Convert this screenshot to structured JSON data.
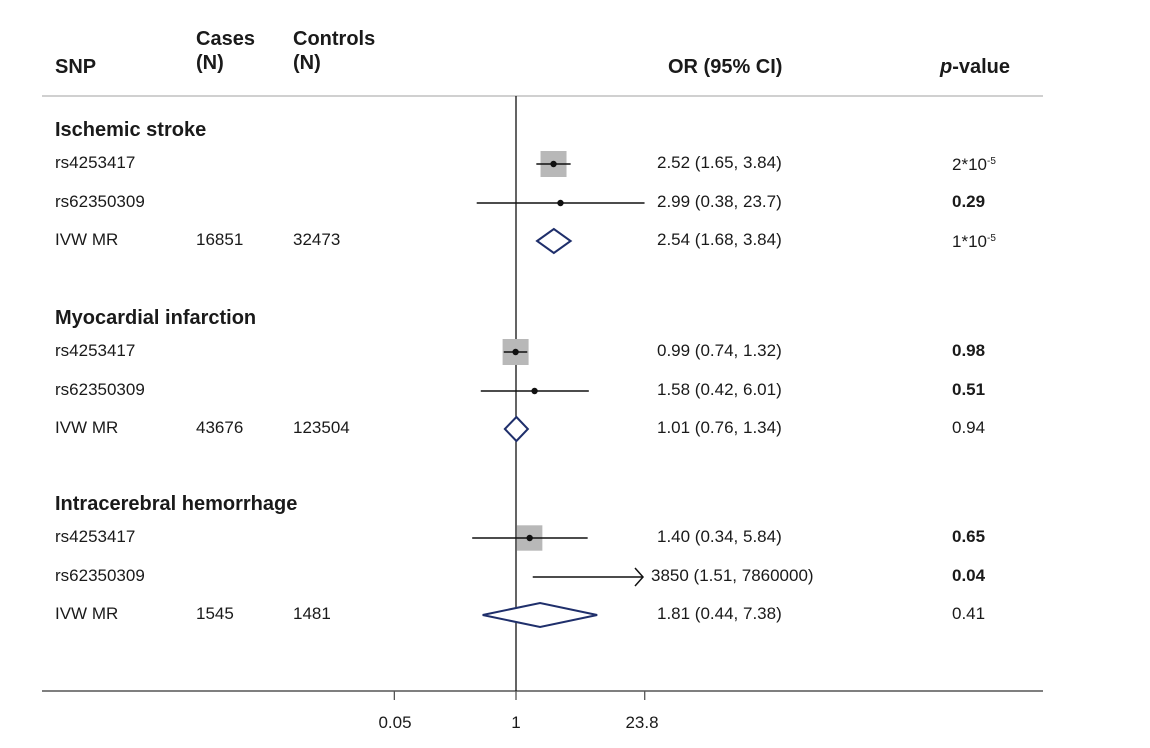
{
  "header": {
    "snp": "SNP",
    "cases": "Cases",
    "cases_unit": "(N)",
    "controls": "Controls",
    "controls_unit": "(N)",
    "or": "OR (95% CI)",
    "pvalue_italic": "p",
    "pvalue_rest": "-value"
  },
  "axis_ticks": [
    "0.05",
    "1",
    "23.8"
  ],
  "chart_data": {
    "type": "forest",
    "x_scale": "log",
    "x_ticks": [
      0.05,
      1,
      23.8
    ],
    "reference_line": 1,
    "groups": [
      {
        "name": "Ischemic stroke",
        "rows": [
          {
            "snp": "rs4253417",
            "cases": "",
            "controls": "",
            "or": 2.52,
            "lo": 1.65,
            "hi": 3.84,
            "or_text": "2.52 (1.65, 3.84)",
            "p_base": "2*10",
            "p_exp": "-5",
            "p_bold": false,
            "marker": "square",
            "weight": 1.0
          },
          {
            "snp": "rs62350309",
            "cases": "",
            "controls": "",
            "or": 2.99,
            "lo": 0.38,
            "hi": 23.7,
            "or_text": "2.99 (0.38, 23.7)",
            "p_base": "0.29",
            "p_exp": "",
            "p_bold": true,
            "marker": "square",
            "weight": 0.0
          },
          {
            "snp": "IVW MR",
            "cases": "16851",
            "controls": "32473",
            "or": 2.54,
            "lo": 1.68,
            "hi": 3.84,
            "or_text": "2.54 (1.68, 3.84)",
            "p_base": "1*10",
            "p_exp": "-5",
            "p_bold": false,
            "marker": "diamond"
          }
        ]
      },
      {
        "name": "Myocardial infarction",
        "rows": [
          {
            "snp": "rs4253417",
            "cases": "",
            "controls": "",
            "or": 0.99,
            "lo": 0.74,
            "hi": 1.32,
            "or_text": "0.99 (0.74, 1.32)",
            "p_base": "0.98",
            "p_exp": "",
            "p_bold": true,
            "marker": "square",
            "weight": 1.0
          },
          {
            "snp": "rs62350309",
            "cases": "",
            "controls": "",
            "or": 1.58,
            "lo": 0.42,
            "hi": 6.01,
            "or_text": "1.58 (0.42, 6.01)",
            "p_base": "0.51",
            "p_exp": "",
            "p_bold": true,
            "marker": "square",
            "weight": 0.0
          },
          {
            "snp": "IVW MR",
            "cases": "43676",
            "controls": "123504",
            "or": 1.01,
            "lo": 0.76,
            "hi": 1.34,
            "or_text": "1.01 (0.76, 1.34)",
            "p_base": "0.94",
            "p_exp": "",
            "p_bold": false,
            "marker": "diamond"
          }
        ]
      },
      {
        "name": "Intracerebral hemorrhage",
        "rows": [
          {
            "snp": "rs4253417",
            "cases": "",
            "controls": "",
            "or": 1.4,
            "lo": 0.34,
            "hi": 5.84,
            "or_text": "1.40 (0.34, 5.84)",
            "p_base": "0.65",
            "p_exp": "",
            "p_bold": true,
            "marker": "square",
            "weight": 0.9
          },
          {
            "snp": "rs62350309",
            "cases": "",
            "controls": "",
            "or": 3850,
            "lo": 1.51,
            "hi": 7860000,
            "or_text": "3850 (1.51, 7860000)",
            "p_base": "0.04",
            "p_exp": "",
            "p_bold": true,
            "marker": "arrow"
          },
          {
            "snp": "IVW MR",
            "cases": "1545",
            "controls": "1481",
            "or": 1.81,
            "lo": 0.44,
            "hi": 7.38,
            "or_text": "1.81 (0.44, 7.38)",
            "p_base": "0.41",
            "p_exp": "",
            "p_bold": false,
            "marker": "diamond"
          }
        ]
      }
    ],
    "colors": {
      "diamond": "#1f2f6b",
      "square": "#b8b8b8",
      "line": "#111111",
      "axis": "#555555",
      "header_rule": "#d0d0d0"
    }
  }
}
